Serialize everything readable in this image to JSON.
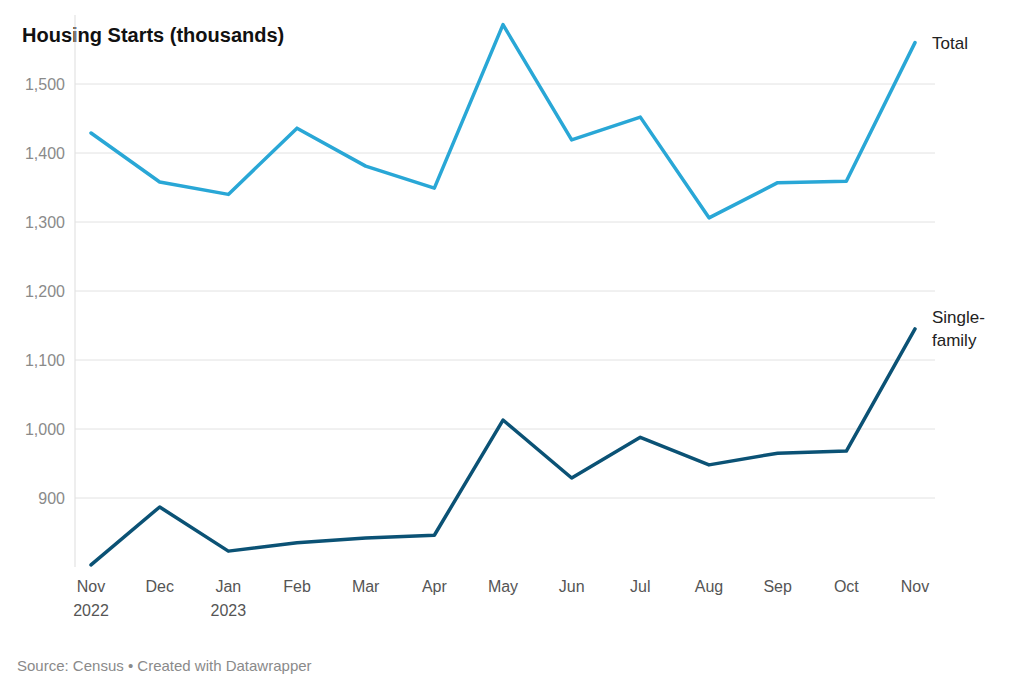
{
  "chart_data": {
    "type": "line",
    "title": "Housing Starts (thousands)",
    "source": "Source: Census • Created with Datawrapper",
    "categories": [
      "Nov 2022",
      "Dec",
      "Jan 2023",
      "Feb",
      "Mar",
      "Apr",
      "May",
      "Jun",
      "Jul",
      "Aug",
      "Sep",
      "Oct",
      "Nov"
    ],
    "series": [
      {
        "name": "Total",
        "color": "#29a7d6",
        "values": [
          1429,
          1358,
          1340,
          1436,
          1381,
          1349,
          1586,
          1419,
          1452,
          1306,
          1357,
          1359,
          1560
        ]
      },
      {
        "name": "Single-family",
        "color": "#0b5275",
        "values": [
          803,
          887,
          823,
          835,
          842,
          846,
          1013,
          929,
          988,
          948,
          965,
          968,
          1145
        ]
      }
    ],
    "ylim": [
      800,
      1600
    ],
    "yticks": [
      900,
      {
        "value": 1000,
        "label": "1,000"
      },
      {
        "value": 1100,
        "label": "1,100"
      },
      {
        "value": 1200,
        "label": "1,200"
      },
      {
        "value": 1300,
        "label": "1,300"
      },
      {
        "value": 1400,
        "label": "1,400"
      },
      {
        "value": 1500,
        "label": "1,500"
      }
    ],
    "grid": true
  }
}
